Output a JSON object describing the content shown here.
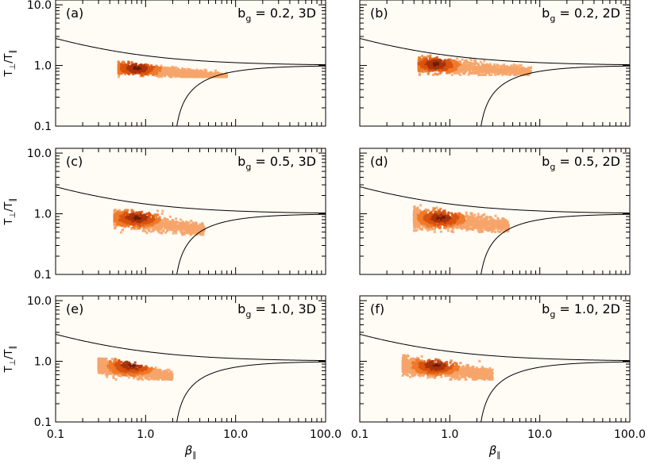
{
  "chart_data": [
    {
      "type": "scatter",
      "panel_label": "(a)",
      "title": "b_g = 0.2, 3D",
      "xlabel": "",
      "ylabel": "T⊥/T∥",
      "xscale": "log",
      "yscale": "log",
      "xlim": [
        0.1,
        100.0
      ],
      "ylim": [
        0.1,
        12.0
      ],
      "xticks": [],
      "yticks": [
        "0.1",
        "1.0",
        "10.0"
      ],
      "distribution": {
        "beta_range": [
          0.5,
          8.0
        ],
        "ratio_range": [
          0.65,
          1.15
        ],
        "peak": [
          0.8,
          0.9
        ]
      }
    },
    {
      "type": "scatter",
      "panel_label": "(b)",
      "title": "b_g = 0.2, 2D",
      "xlabel": "",
      "ylabel": "",
      "xscale": "log",
      "yscale": "log",
      "xlim": [
        0.1,
        100.0
      ],
      "ylim": [
        0.1,
        12.0
      ],
      "xticks": [],
      "yticks": [],
      "distribution": {
        "beta_range": [
          0.45,
          8.0
        ],
        "ratio_range": [
          0.7,
          1.5
        ],
        "peak": [
          0.7,
          1.05
        ]
      }
    },
    {
      "type": "scatter",
      "panel_label": "(c)",
      "title": "b_g = 0.5, 3D",
      "xlabel": "",
      "ylabel": "T⊥/T∥",
      "xscale": "log",
      "yscale": "log",
      "xlim": [
        0.1,
        100.0
      ],
      "ylim": [
        0.1,
        12.0
      ],
      "xticks": [],
      "yticks": [
        "0.1",
        "1.0",
        "10.0"
      ],
      "distribution": {
        "beta_range": [
          0.45,
          4.5
        ],
        "ratio_range": [
          0.45,
          1.15
        ],
        "peak": [
          0.8,
          0.85
        ]
      }
    },
    {
      "type": "scatter",
      "panel_label": "(d)",
      "title": "b_g = 0.5, 2D",
      "xlabel": "",
      "ylabel": "",
      "xscale": "log",
      "yscale": "log",
      "xlim": [
        0.1,
        100.0
      ],
      "ylim": [
        0.1,
        12.0
      ],
      "xticks": [],
      "yticks": [],
      "distribution": {
        "beta_range": [
          0.4,
          4.5
        ],
        "ratio_range": [
          0.5,
          1.4
        ],
        "peak": [
          0.8,
          0.85
        ]
      }
    },
    {
      "type": "scatter",
      "panel_label": "(e)",
      "title": "b_g = 1.0, 3D",
      "xlabel": "β∥",
      "ylabel": "T⊥/T∥",
      "xscale": "log",
      "yscale": "log",
      "xlim": [
        0.1,
        100.0
      ],
      "ylim": [
        0.1,
        12.0
      ],
      "xticks": [
        "0.1",
        "1.0",
        "10.0",
        "100.0"
      ],
      "yticks": [
        "0.1",
        "1.0",
        "10.0"
      ],
      "distribution": {
        "beta_range": [
          0.3,
          2.0
        ],
        "ratio_range": [
          0.5,
          1.1
        ],
        "peak": [
          0.7,
          0.85
        ]
      }
    },
    {
      "type": "scatter",
      "panel_label": "(f)",
      "title": "b_g = 1.0, 2D",
      "xlabel": "β∥",
      "ylabel": "",
      "xscale": "log",
      "yscale": "log",
      "xlim": [
        0.1,
        100.0
      ],
      "ylim": [
        0.1,
        12.0
      ],
      "xticks": [
        "0.1",
        "1.0",
        "10.0",
        "100.0"
      ],
      "yticks": [],
      "distribution": {
        "beta_range": [
          0.3,
          3.0
        ],
        "ratio_range": [
          0.5,
          1.25
        ],
        "peak": [
          0.7,
          0.85
        ]
      }
    }
  ],
  "style": {
    "plot_background": "#fffbf5",
    "axis_color": "#000000",
    "density_colors": [
      "#f6a56a",
      "#ef7a2a",
      "#d9540e",
      "#a8340a",
      "#6e1a05"
    ]
  }
}
